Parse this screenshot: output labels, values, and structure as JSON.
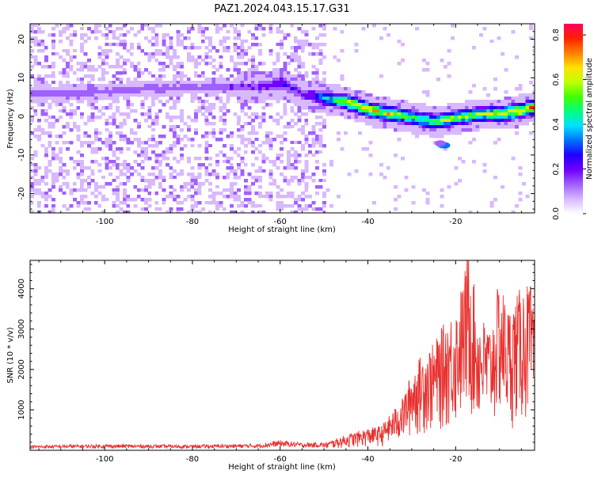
{
  "title": "PAZ1.2024.043.15.17.G31",
  "chart_data": [
    {
      "type": "heatmap",
      "xlabel": "Height of straight line (km)",
      "ylabel": "Frequency (Hz)",
      "xlim": [
        -117,
        -2
      ],
      "ylim": [
        -25,
        24
      ],
      "xticks": [
        -100,
        -80,
        -60,
        -40,
        -20
      ],
      "yticks": [
        -20,
        -10,
        0,
        10,
        20
      ],
      "colorbar": {
        "label": "Normalized spectral amplitude",
        "ticks": [
          0.0,
          0.2,
          0.4,
          0.6,
          0.8
        ],
        "range": [
          0,
          0.85
        ],
        "colors": [
          "#ffffff",
          "#d8b8ff",
          "#a060ff",
          "#7000ff",
          "#2000ff",
          "#0070ff",
          "#00e0ff",
          "#00ff80",
          "#40ff00",
          "#c0ff00",
          "#ffe000",
          "#ff8000",
          "#ff2000",
          "#ff0060"
        ]
      },
      "ridge": {
        "x": [
          -117,
          -100,
          -80,
          -65,
          -60,
          -55,
          -50,
          -45,
          -40,
          -35,
          -30,
          -25,
          -20,
          -15,
          -10,
          -5,
          -2
        ],
        "frequency": [
          6,
          7,
          8,
          8,
          9,
          6,
          5,
          4,
          2,
          1,
          0,
          -1,
          0,
          1,
          1,
          2,
          3
        ],
        "amplitude": [
          0.15,
          0.15,
          0.15,
          0.2,
          0.28,
          0.2,
          0.45,
          0.7,
          0.75,
          0.65,
          0.55,
          0.6,
          0.65,
          0.65,
          0.7,
          0.78,
          0.8
        ]
      },
      "noise_end_x": -50
    },
    {
      "type": "line",
      "xlabel": "Height of straight line (km)",
      "ylabel": "SNR (10 * v/v)",
      "xlim": [
        -117,
        -2
      ],
      "ylim": [
        0,
        4700
      ],
      "xticks": [
        -100,
        -80,
        -60,
        -40,
        -20
      ],
      "yticks": [
        1000,
        2000,
        3000,
        4000
      ],
      "color": "#e8312f",
      "envelope": {
        "x": [
          -117,
          -100,
          -80,
          -65,
          -60,
          -55,
          -50,
          -45,
          -40,
          -37,
          -35,
          -32,
          -30,
          -27,
          -25,
          -22,
          -20,
          -18,
          -17,
          -15,
          -12,
          -10,
          -8,
          -5,
          -3,
          -2
        ],
        "y": [
          100,
          120,
          110,
          130,
          200,
          150,
          160,
          350,
          500,
          550,
          800,
          1200,
          1800,
          2300,
          2400,
          3000,
          3200,
          4000,
          4700,
          3100,
          2800,
          3900,
          3200,
          3700,
          3800,
          2900
        ]
      }
    }
  ]
}
